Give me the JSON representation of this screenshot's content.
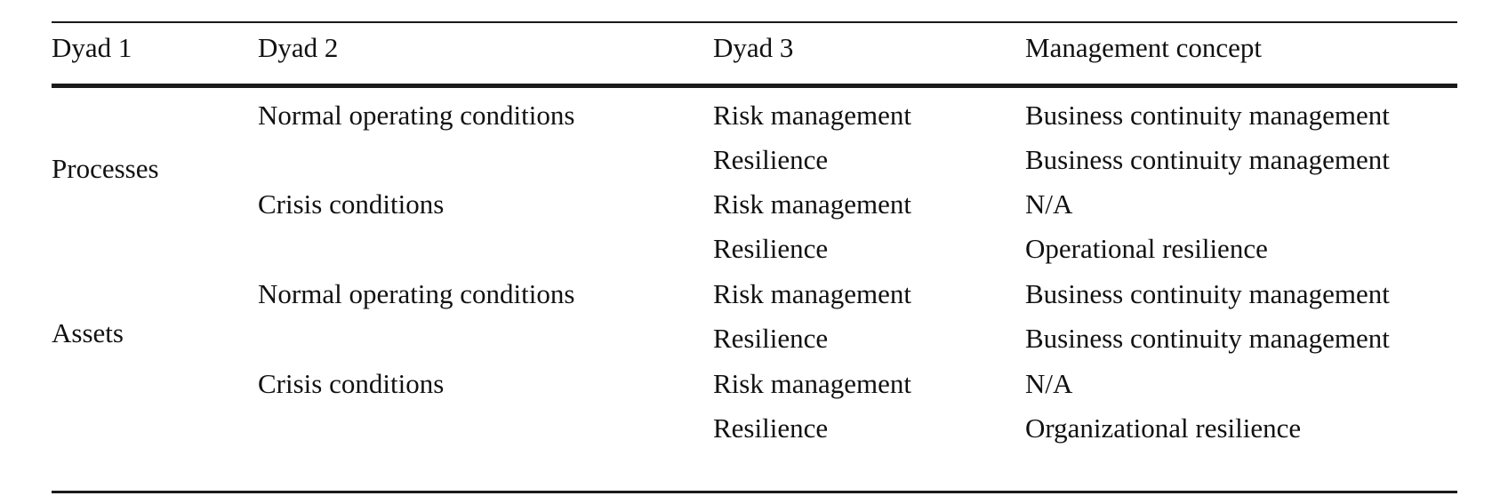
{
  "table": {
    "headers": [
      "Dyad 1",
      "Dyad 2",
      "Dyad 3",
      "Management concept"
    ],
    "dyad1_groups": [
      "Processes",
      "Assets"
    ],
    "dyad2_groups": [
      "Normal operating conditions",
      "Crisis conditions",
      "Normal operating conditions",
      "Crisis conditions"
    ],
    "rows": [
      {
        "dyad3": "Risk management",
        "concept": "Business continuity management"
      },
      {
        "dyad3": "Resilience",
        "concept": "Business continuity management"
      },
      {
        "dyad3": "Risk management",
        "concept": "N/A"
      },
      {
        "dyad3": "Resilience",
        "concept": "Operational resilience"
      },
      {
        "dyad3": "Risk management",
        "concept": "Business continuity management"
      },
      {
        "dyad3": "Resilience",
        "concept": "Business continuity management"
      },
      {
        "dyad3": "Risk management",
        "concept": "N/A"
      },
      {
        "dyad3": "Resilience",
        "concept": "Organizational resilience"
      }
    ]
  }
}
